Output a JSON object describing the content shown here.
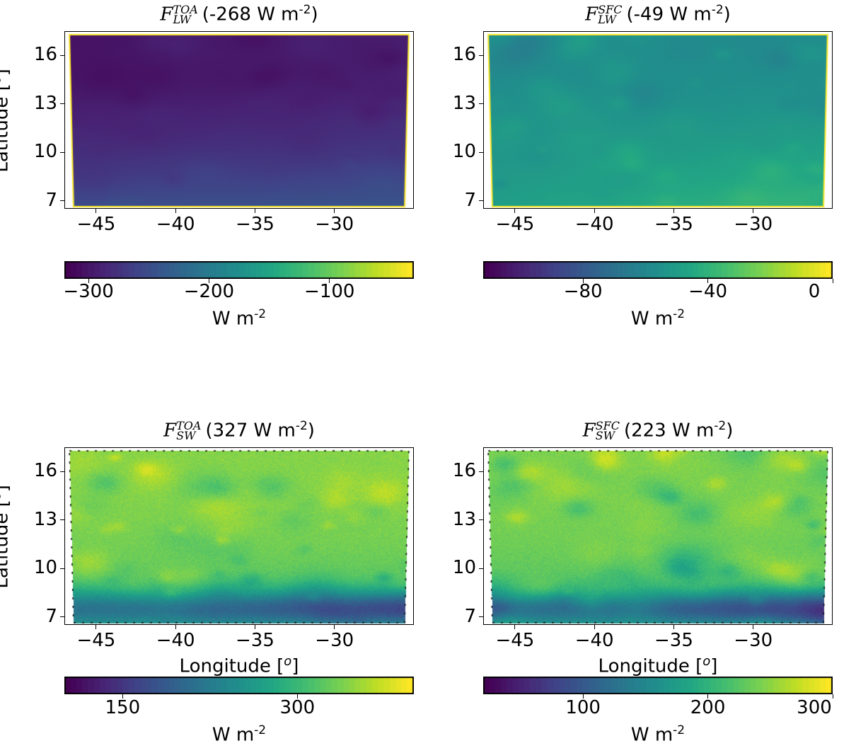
{
  "chart_data": [
    {
      "type": "heatmap",
      "title": "F_LW^TOA (-268 W m-2)",
      "title_parts": {
        "base": "F",
        "sup": "TOA",
        "sub": "LW",
        "value": "(-268 W m",
        "exp": "-2",
        "close": ")"
      },
      "ylabel": "Latitude [o]",
      "xlabel": "",
      "x_ticks": [
        "−45",
        "−40",
        "−35",
        "−30"
      ],
      "x_tick_values": [
        -45,
        -40,
        -35,
        -30
      ],
      "y_ticks": [
        "16",
        "13",
        "10",
        "7"
      ],
      "y_tick_values": [
        16,
        13,
        10,
        7
      ],
      "xlim": [
        -47,
        -25
      ],
      "ylim": [
        6.5,
        17.5
      ],
      "colorbar": {
        "ticks": [
          "−300",
          "−200",
          "−100"
        ],
        "tick_values": [
          -300,
          -200,
          -100
        ],
        "range": [
          -320,
          -30
        ],
        "label": "W m",
        "label_exp": "-2"
      },
      "field_summary": {
        "mean": -268,
        "pattern": "dark purple (about -300) in the north, lighter blue-purple (about -240) near 7-9 N"
      }
    },
    {
      "type": "heatmap",
      "title": "F_LW^SFC (-49 W m-2)",
      "title_parts": {
        "base": "F",
        "sup": "SFC",
        "sub": "LW",
        "value": "(-49 W m",
        "exp": "-2",
        "close": ")"
      },
      "ylabel": "",
      "xlabel": "",
      "x_ticks": [
        "−45",
        "−40",
        "−35",
        "−30"
      ],
      "x_tick_values": [
        -45,
        -40,
        -35,
        -30
      ],
      "y_ticks": [
        "16",
        "13",
        "10",
        "7"
      ],
      "y_tick_values": [
        16,
        13,
        10,
        7
      ],
      "xlim": [
        -47,
        -25
      ],
      "ylim": [
        6.5,
        17.5
      ],
      "colorbar": {
        "ticks": [
          "−80",
          "−40",
          "0"
        ],
        "tick_values": [
          -80,
          -40,
          0
        ],
        "range": [
          -112,
          0
        ],
        "label": "W m",
        "label_exp": "-2"
      },
      "field_summary": {
        "mean": -49,
        "pattern": "teal (about -55) in the north, green (about -40) in the south-east"
      }
    },
    {
      "type": "heatmap",
      "title": "F_SW^TOA (327 W m-2)",
      "title_parts": {
        "base": "F",
        "sup": "TOA",
        "sub": "SW",
        "value": "(327 W m",
        "exp": "-2",
        "close": ")"
      },
      "ylabel": "Latitude [o]",
      "xlabel": "Longitude [o]",
      "x_ticks": [
        "−45",
        "−40",
        "−35",
        "−30"
      ],
      "x_tick_values": [
        -45,
        -40,
        -35,
        -30
      ],
      "y_ticks": [
        "16",
        "13",
        "10",
        "7"
      ],
      "y_tick_values": [
        16,
        13,
        10,
        7
      ],
      "xlim": [
        -47,
        -25
      ],
      "ylim": [
        6.5,
        17.5
      ],
      "colorbar": {
        "ticks": [
          "150",
          "300"
        ],
        "tick_values": [
          150,
          300
        ],
        "range": [
          100,
          400
        ],
        "label": "W m",
        "label_exp": "-2"
      },
      "field_summary": {
        "mean": 327,
        "pattern": "mottled yellow-green clouds (about 330-380) across the north, darker blue (about 200) band near 7-9 N"
      }
    },
    {
      "type": "heatmap",
      "title": "F_SW^SFC (223 W m-2)",
      "title_parts": {
        "base": "F",
        "sup": "SFC",
        "sub": "SW",
        "value": "(223 W m",
        "exp": "-2",
        "close": ")"
      },
      "ylabel": "",
      "xlabel": "Longitude [o]",
      "x_ticks": [
        "−45",
        "−40",
        "−35",
        "−30"
      ],
      "x_tick_values": [
        -45,
        -40,
        -35,
        -30
      ],
      "y_ticks": [
        "16",
        "13",
        "10",
        "7"
      ],
      "y_tick_values": [
        16,
        13,
        10,
        7
      ],
      "xlim": [
        -47,
        -25
      ],
      "ylim": [
        6.5,
        17.5
      ],
      "colorbar": {
        "ticks": [
          "100",
          "200",
          "300"
        ],
        "tick_values": [
          100,
          200,
          300
        ],
        "range": [
          20,
          300
        ],
        "label": "W m",
        "label_exp": "-2"
      },
      "field_summary": {
        "mean": 223,
        "pattern": "mottled yellow-green clouds (about 230-280) across the north, dark blue (about 80-120) band near 7-9 N"
      }
    }
  ],
  "colors": {
    "colormap": "viridis",
    "edge_highlight": "#fde725"
  }
}
